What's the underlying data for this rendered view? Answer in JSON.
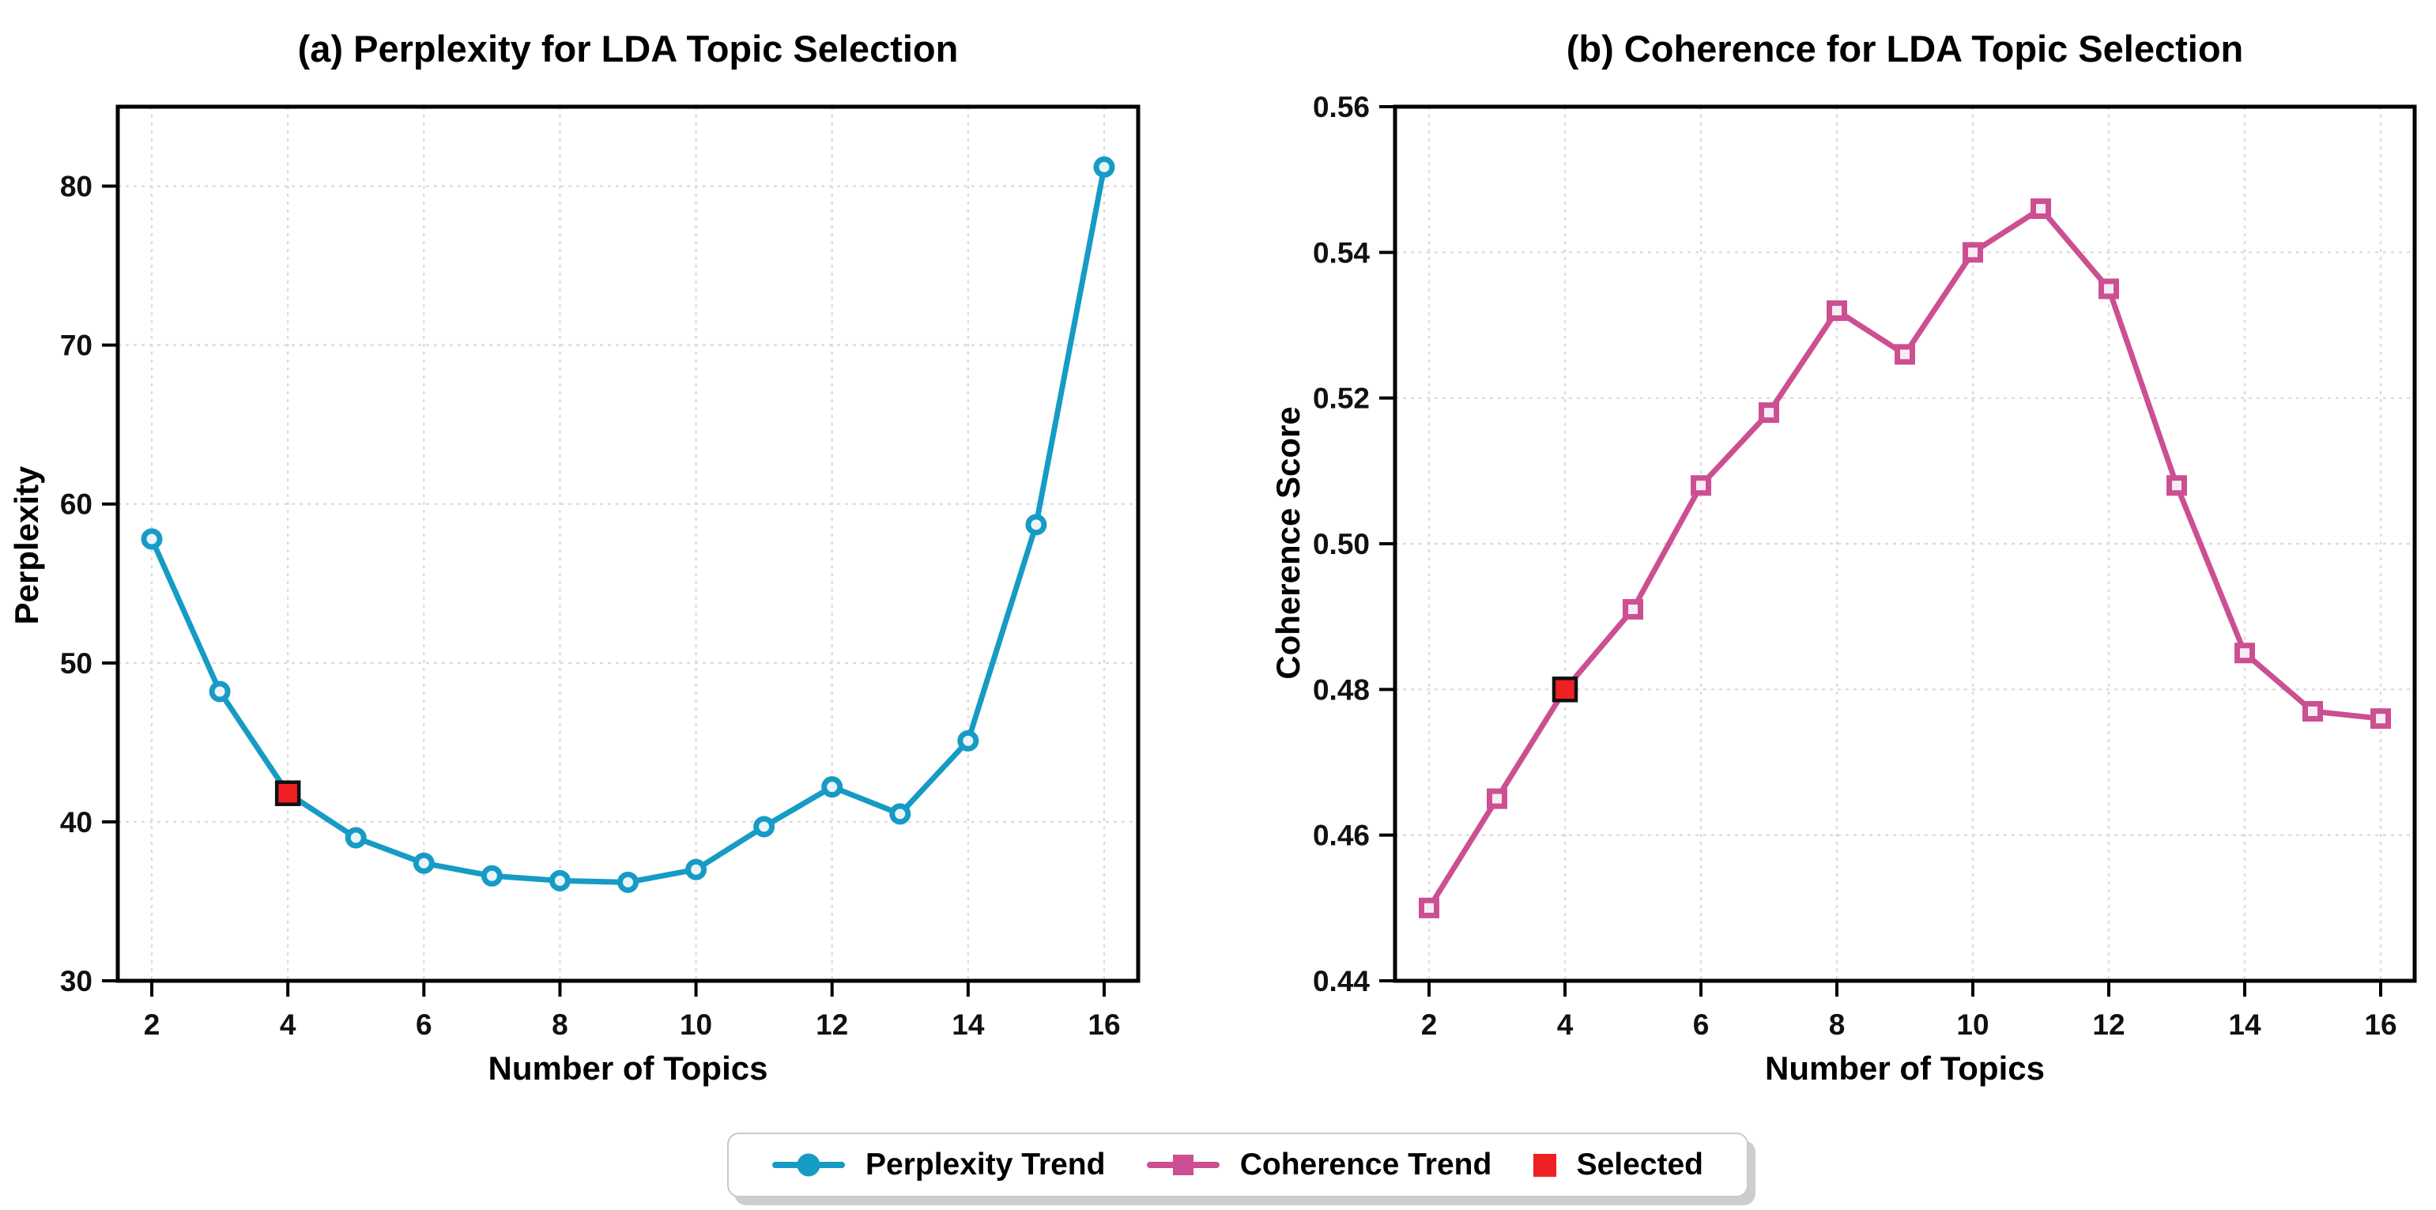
{
  "figure": {
    "background": "#ffffff"
  },
  "colors": {
    "perplexity_line": "#169bc5",
    "perplexity_marker_fill": "#e9f5fa",
    "coherence_line": "#cc4f92",
    "coherence_marker_fill": "#f8ecf4",
    "selected_red": "#ee2024",
    "selected_edge": "#111111",
    "grid": "#dcdcdc",
    "frame": "#000000"
  },
  "legend": {
    "items": [
      {
        "label": "Perplexity Trend",
        "glyph": "line-circle",
        "color": "#169bc5"
      },
      {
        "label": "Coherence Trend",
        "glyph": "line-square",
        "color": "#cc4f92"
      },
      {
        "label": "Selected",
        "glyph": "square",
        "color": "#ee2024"
      }
    ]
  },
  "chart_data": [
    {
      "type": "line",
      "title": "(a) Perplexity for LDA Topic Selection",
      "xlabel": "Number of Topics",
      "ylabel": "Perplexity",
      "legend_label": "Perplexity Trend",
      "x": [
        2,
        3,
        4,
        5,
        6,
        7,
        8,
        9,
        10,
        11,
        12,
        13,
        14,
        15,
        16
      ],
      "values": [
        57.8,
        48.2,
        41.8,
        39.0,
        37.4,
        36.6,
        36.3,
        36.2,
        37.0,
        39.7,
        42.2,
        40.5,
        45.1,
        58.7,
        81.2
      ],
      "selected_index": 2,
      "selected_point": {
        "x": 4,
        "y": 41.8
      },
      "xlim": [
        1.5,
        16.5
      ],
      "ylim": [
        30,
        85
      ],
      "xticks": [
        2,
        4,
        6,
        8,
        10,
        12,
        14,
        16
      ],
      "xtick_labels": [
        "2",
        "4",
        "6",
        "8",
        "10",
        "12",
        "14",
        "16"
      ],
      "yticks": [
        30,
        40,
        50,
        60,
        70,
        80
      ],
      "ytick_labels": [
        "30",
        "40",
        "50",
        "60",
        "70",
        "80"
      ],
      "grid": true,
      "legend_position": "figure-bottom",
      "line_color": "#169bc5",
      "marker": "circle",
      "marker_fill": "#e9f5fa"
    },
    {
      "type": "line",
      "title": "(b) Coherence for LDA Topic Selection",
      "xlabel": "Number of Topics",
      "ylabel": "Coherence Score",
      "legend_label": "Coherence Trend",
      "x": [
        2,
        3,
        4,
        5,
        6,
        7,
        8,
        9,
        10,
        11,
        12,
        13,
        14,
        15,
        16
      ],
      "values": [
        0.45,
        0.465,
        0.48,
        0.491,
        0.508,
        0.518,
        0.532,
        0.526,
        0.54,
        0.546,
        0.535,
        0.508,
        0.485,
        0.477,
        0.476
      ],
      "selected_index": 2,
      "selected_point": {
        "x": 4,
        "y": 0.48
      },
      "xlim": [
        1.5,
        16.5
      ],
      "ylim": [
        0.44,
        0.56
      ],
      "xticks": [
        2,
        4,
        6,
        8,
        10,
        12,
        14,
        16
      ],
      "xtick_labels": [
        "2",
        "4",
        "6",
        "8",
        "10",
        "12",
        "14",
        "16"
      ],
      "yticks": [
        0.44,
        0.46,
        0.48,
        0.5,
        0.52,
        0.54,
        0.56
      ],
      "ytick_labels": [
        "0.44",
        "0.46",
        "0.48",
        "0.50",
        "0.52",
        "0.54",
        "0.56"
      ],
      "grid": true,
      "legend_position": "figure-bottom",
      "line_color": "#cc4f92",
      "marker": "square",
      "marker_fill": "#f8ecf4"
    }
  ]
}
